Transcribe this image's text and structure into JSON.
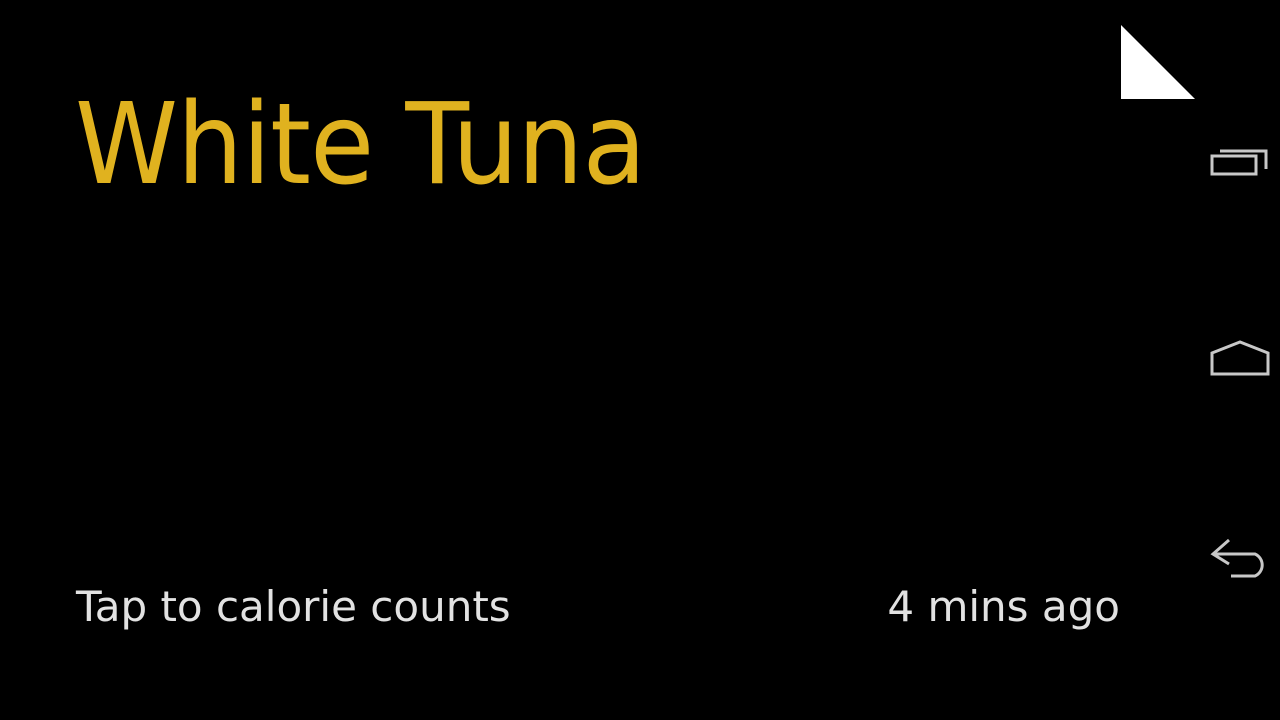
{
  "card": {
    "title": "White Tuna",
    "footer_text": "Tap to calorie counts",
    "timestamp": "4 mins ago"
  },
  "colors": {
    "background": "#000000",
    "title": "#E0B21F",
    "footer_text": "#E2E2E2",
    "nav_icon": "#C8C8C8",
    "corner_flag": "#FFFFFF"
  },
  "corner_icon": "page-corner-flag-icon",
  "nav_bar": {
    "buttons": [
      {
        "name": "recent-apps",
        "icon": "recent-apps-icon"
      },
      {
        "name": "home",
        "icon": "home-icon"
      },
      {
        "name": "back",
        "icon": "back-icon"
      }
    ]
  }
}
